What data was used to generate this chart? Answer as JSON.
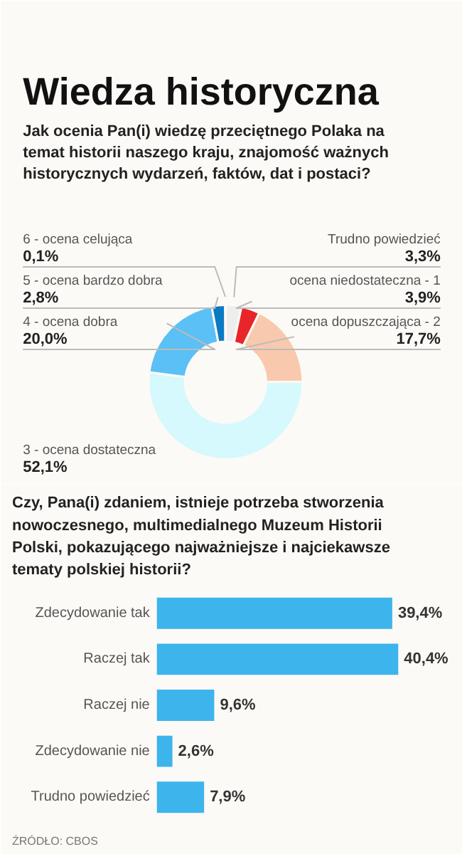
{
  "chart_data": [
    {
      "type": "donut",
      "title": "Wiedza historyczna",
      "subtitle": "Jak ocenia Pan(i) wiedzę przeciętnego Polaka na temat historii naszego kraju, znajomość ważnych historycznych wydarzeń, faktów, dat i postaci?",
      "categories": [
        "Trudno powiedzieć",
        "ocena niedostateczna - 1",
        "ocena dopuszczająca - 2",
        "3 - ocena dostateczna",
        "4 - ocena dobra",
        "5 - ocena bardzo dobra",
        "6 - ocena celująca"
      ],
      "values": [
        3.3,
        3.9,
        17.7,
        52.1,
        20.0,
        2.8,
        0.1
      ],
      "colors": [
        "#eeeeee",
        "#e8262a",
        "#f9c9ad",
        "#d5f9fd",
        "#5bc0f5",
        "#0a7ac2",
        "#0b5e9e"
      ],
      "value_labels": [
        "3,3%",
        "3,9%",
        "17,7%",
        "52,1%",
        "20,0%",
        "2,8%",
        "0,1%"
      ]
    },
    {
      "type": "bar",
      "orientation": "horizontal",
      "title": "Czy, Pana(i) zdaniem, istnieje potrzeba stworzenia nowoczesnego, multimedialnego Muzeum Historii Polski, pokazującego najważniejsze i najciekawsze tematy polskiej historii?",
      "categories": [
        "Zdecydowanie tak",
        "Raczej tak",
        "Raczej nie",
        "Zdecydowanie nie",
        "Trudno powiedzieć"
      ],
      "values": [
        39.4,
        40.4,
        9.6,
        2.6,
        7.9
      ],
      "color": "#3db4ec",
      "value_labels": [
        "39,4%",
        "40,4%",
        "9,6%",
        "2,6%",
        "7,9%"
      ],
      "annotations": [
        "ŹRÓDŁO: CBOS"
      ]
    }
  ]
}
